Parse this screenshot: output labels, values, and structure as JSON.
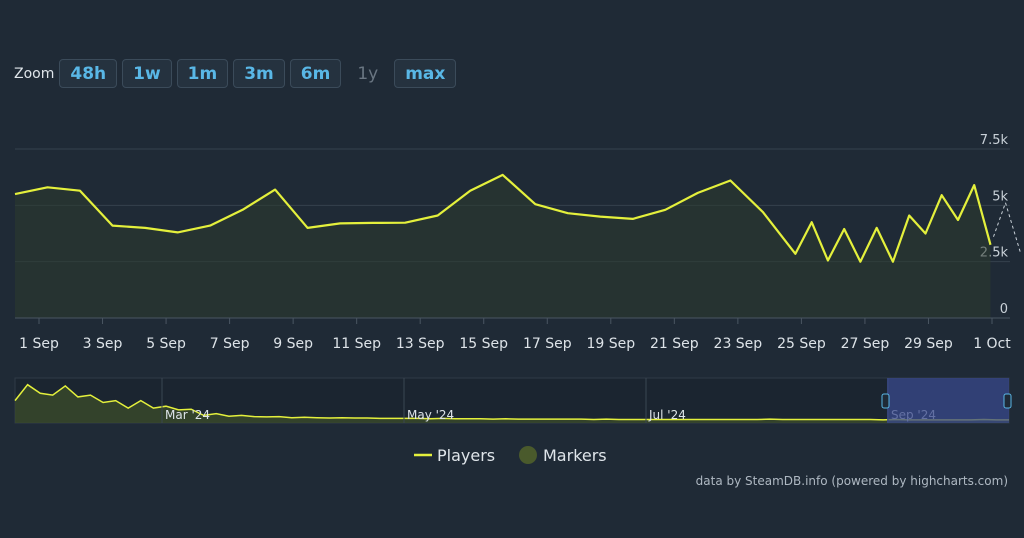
{
  "zoom": {
    "label": "Zoom",
    "buttons": [
      {
        "label": "48h",
        "enabled": true
      },
      {
        "label": "1w",
        "enabled": true
      },
      {
        "label": "1m",
        "enabled": true
      },
      {
        "label": "3m",
        "enabled": true
      },
      {
        "label": "6m",
        "enabled": true
      },
      {
        "label": "1y",
        "enabled": false
      },
      {
        "label": "max",
        "enabled": true
      }
    ]
  },
  "colors": {
    "background": "#1f2a36",
    "line": "#e4f03c",
    "area": "#2c3a2e",
    "grid": "#36424e",
    "navigator_selection": "#3a4a8c",
    "markers": "#4a5a2c"
  },
  "chart_data": {
    "type": "line",
    "series": [
      {
        "name": "Players",
        "x": [
          0,
          1,
          2,
          3,
          4,
          5,
          6,
          7,
          8,
          9,
          10,
          11,
          12,
          13,
          14,
          15,
          16,
          17,
          18,
          19,
          20,
          21,
          22,
          23,
          24,
          24.5,
          25,
          25.5,
          26,
          26.5,
          27,
          27.5,
          28,
          28.5,
          29,
          29.5,
          30
        ],
        "values": [
          5500,
          5800,
          5650,
          4100,
          4000,
          3800,
          4100,
          4800,
          5700,
          4000,
          4200,
          4220,
          4230,
          4550,
          5650,
          6350,
          5050,
          4650,
          4500,
          4400,
          4800,
          5550,
          6100,
          4700,
          2850,
          4250,
          2550,
          3950,
          2500,
          4000,
          2500,
          4550,
          3750,
          5450,
          4350,
          5900,
          3250
        ]
      }
    ],
    "categories": [
      "1 Sep",
      "3 Sep",
      "5 Sep",
      "7 Sep",
      "9 Sep",
      "11 Sep",
      "13 Sep",
      "15 Sep",
      "17 Sep",
      "19 Sep",
      "21 Sep",
      "23 Sep",
      "25 Sep",
      "27 Sep",
      "29 Sep",
      "1 Oct"
    ],
    "y_ticks": [
      {
        "v": 0,
        "label": "0"
      },
      {
        "v": 2500,
        "label": "2.5k"
      },
      {
        "v": 5000,
        "label": "5k"
      },
      {
        "v": 7500,
        "label": "7.5k"
      }
    ],
    "ylim": [
      0,
      7500
    ],
    "xlim": [
      0,
      30.6
    ],
    "grid": true,
    "legend": [
      "Players",
      "Markers"
    ],
    "navigator": {
      "labels": [
        "Mar '24",
        "May '24",
        "Jul '24",
        "Sep '24"
      ],
      "history": [
        0.55,
        0.98,
        0.75,
        0.7,
        0.95,
        0.65,
        0.7,
        0.5,
        0.55,
        0.35,
        0.55,
        0.35,
        0.4,
        0.3,
        0.32,
        0.15,
        0.2,
        0.13,
        0.15,
        0.12,
        0.11,
        0.12,
        0.09,
        0.1,
        0.09,
        0.08,
        0.09,
        0.08,
        0.08,
        0.07,
        0.07,
        0.07,
        0.07,
        0.06,
        0.07,
        0.06,
        0.06,
        0.06,
        0.05,
        0.06,
        0.05,
        0.05,
        0.05,
        0.05,
        0.05,
        0.05,
        0.04,
        0.05,
        0.04,
        0.04,
        0.04,
        0.04,
        0.04,
        0.04,
        0.04,
        0.04,
        0.04,
        0.04,
        0.04,
        0.04,
        0.05,
        0.04,
        0.04,
        0.04,
        0.04,
        0.04,
        0.04,
        0.04,
        0.04,
        0.03,
        0.04,
        0.03,
        0.03,
        0.03,
        0.03,
        0.03,
        0.03,
        0.04,
        0.03,
        0.03
      ]
    }
  },
  "legend": {
    "players": "Players",
    "markers": "Markers"
  },
  "credits": "data by SteamDB.info (powered by highcharts.com)"
}
